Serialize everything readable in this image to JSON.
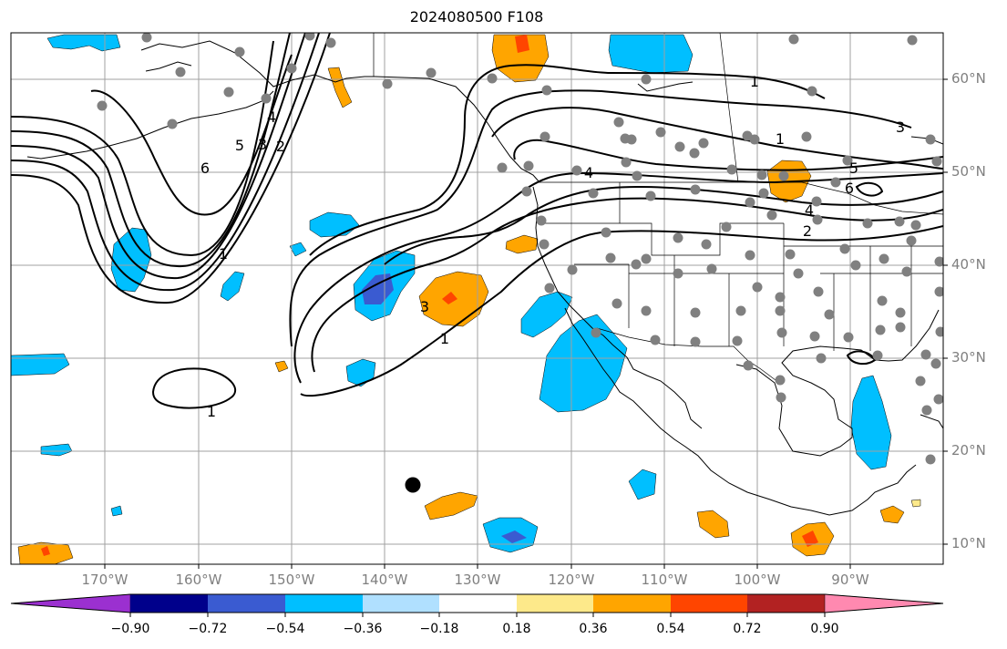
{
  "title": "2024080500 F108",
  "lat_labels": [
    "60°N",
    "50°N",
    "40°N",
    "30°N",
    "20°N",
    "10°N"
  ],
  "lon_labels": [
    "170°W",
    "160°W",
    "150°W",
    "140°W",
    "130°W",
    "120°W",
    "110°W",
    "100°W",
    "90°W"
  ],
  "contour_labels": [
    "1",
    "1",
    "1",
    "1",
    "1",
    "2",
    "2",
    "3",
    "3",
    "3",
    "4",
    "4",
    "4",
    "5",
    "5",
    "6",
    "6"
  ],
  "colorbar": {
    "ticks": [
      "−0.90",
      "−0.72",
      "−0.54",
      "−0.36",
      "−0.18",
      "0.18",
      "0.36",
      "0.54",
      "0.72",
      "0.90"
    ],
    "colors": [
      "#9b30d0",
      "#00008b",
      "#3a5bd1",
      "#00bfff",
      "#b0e0ff",
      "#ffffff",
      "#fde98a",
      "#ffa500",
      "#ff4500",
      "#b22222",
      "#ff89b0"
    ]
  }
}
